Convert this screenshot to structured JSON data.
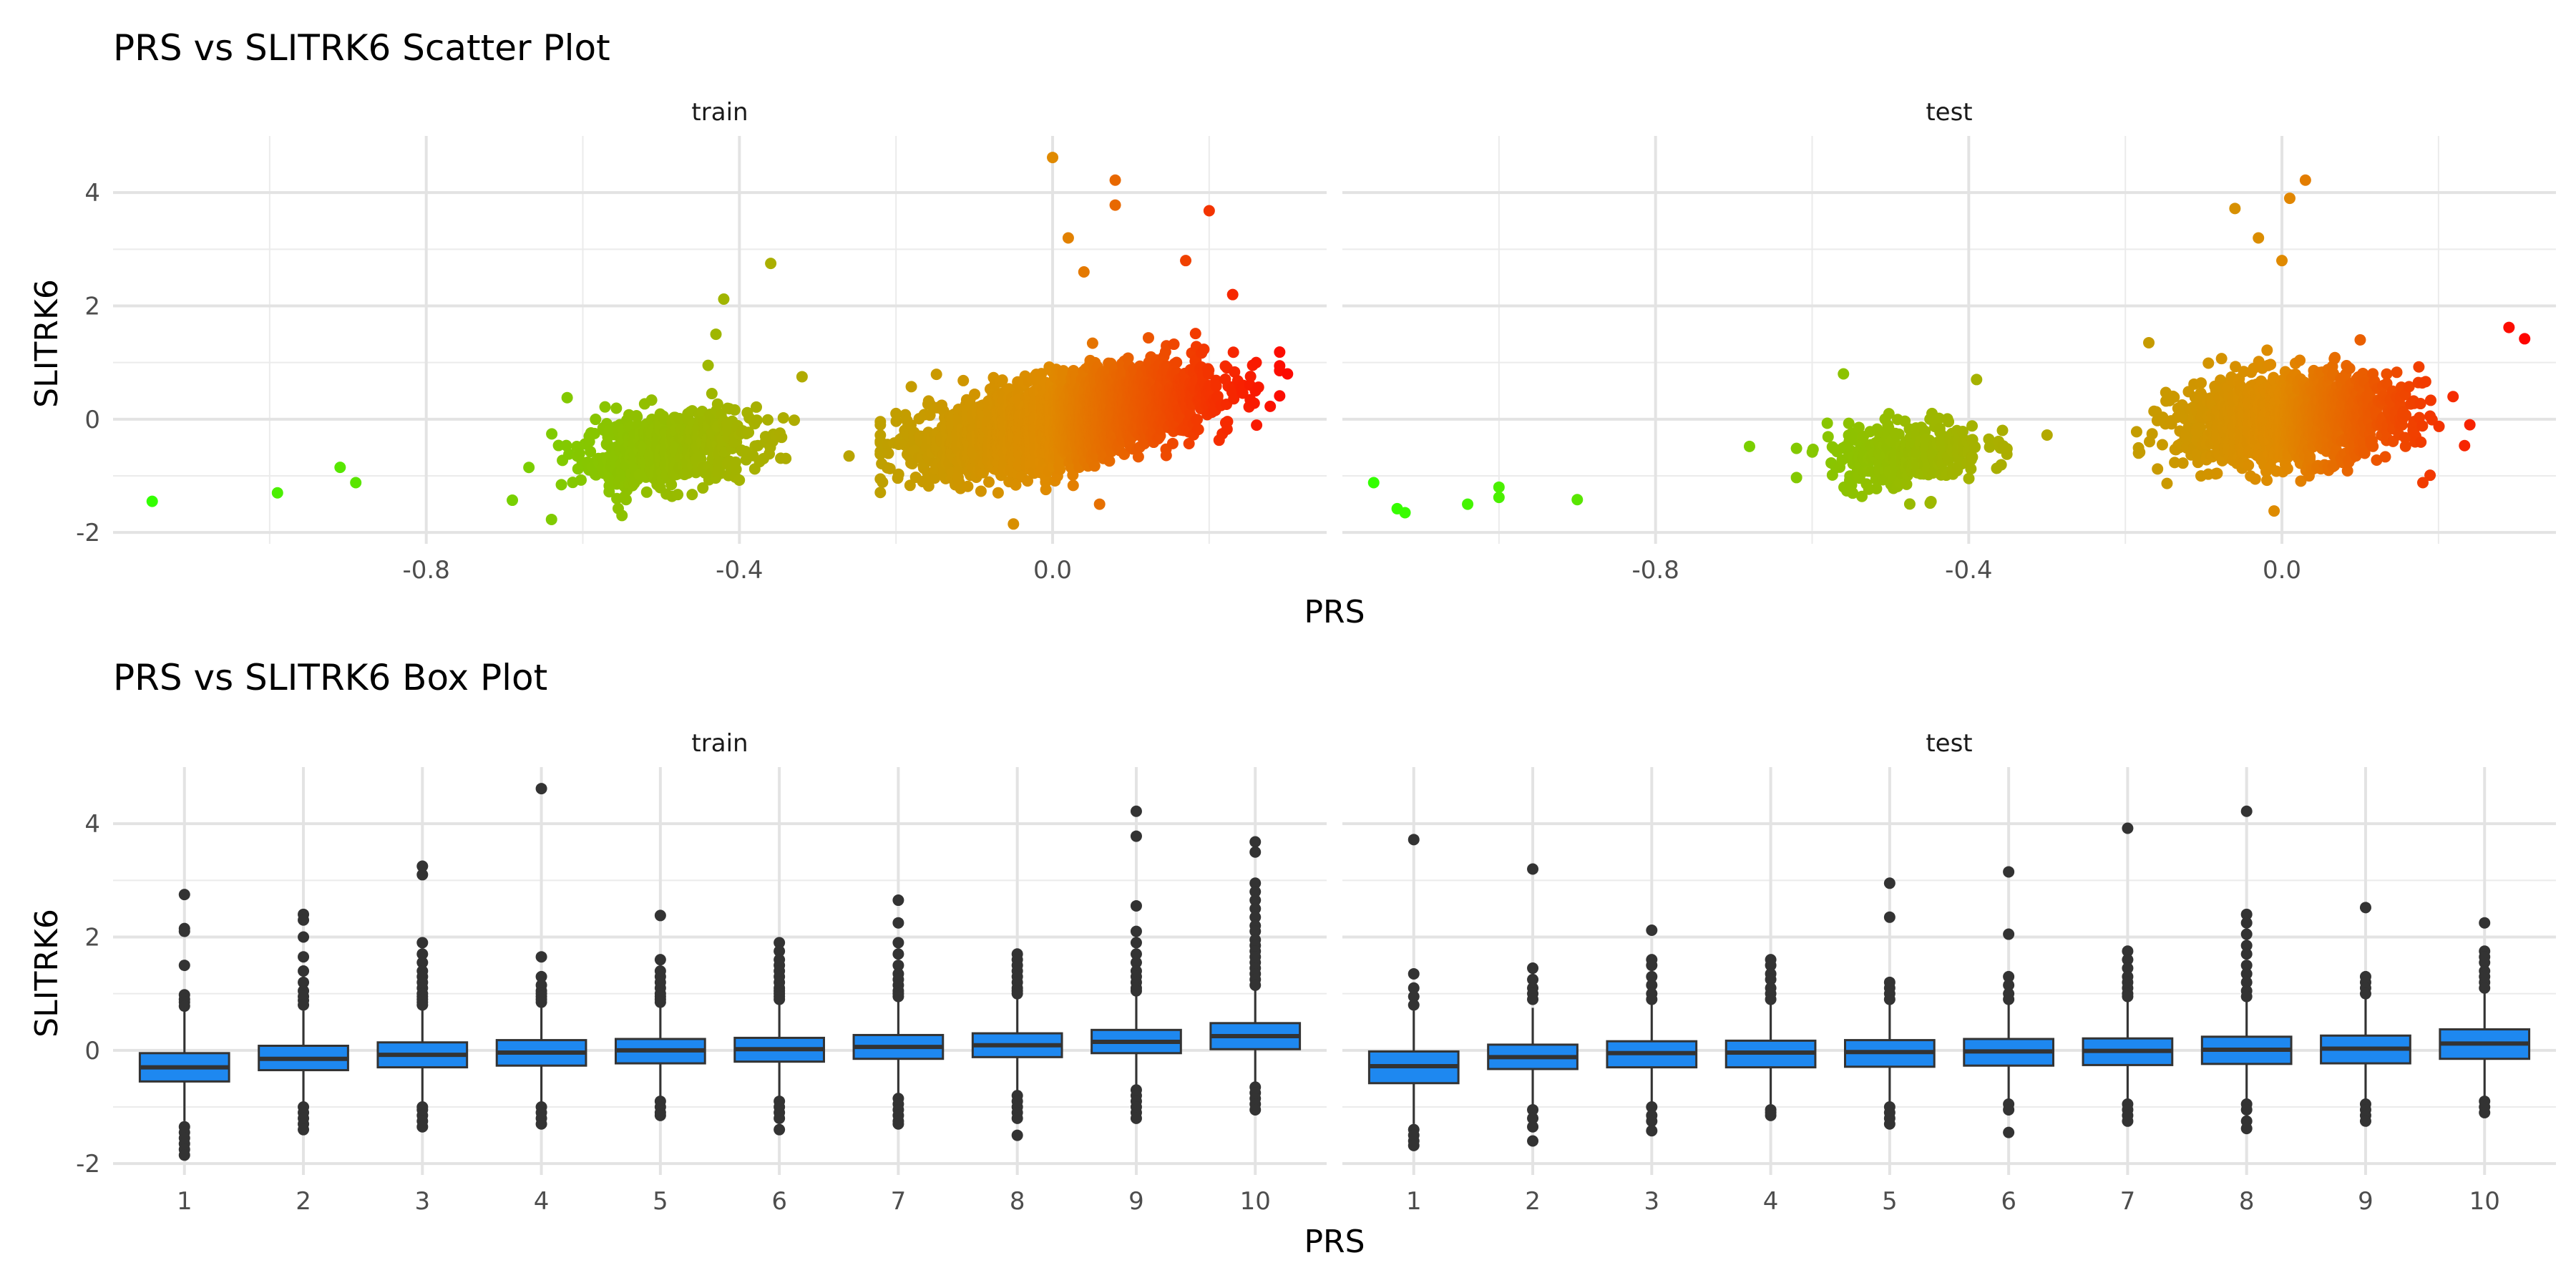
{
  "chart_data": [
    {
      "type": "scatter",
      "title": "PRS vs SLITRK6 Scatter Plot",
      "xlabel": "PRS",
      "ylabel": "SLITRK6",
      "xlim": [
        -1.2,
        0.35
      ],
      "ylim": [
        -2.2,
        5.0
      ],
      "x_ticks": [
        "-0.8",
        "-0.4",
        "0.0"
      ],
      "x_tick_values": [
        -0.8,
        -0.4,
        0.0
      ],
      "y_ticks": [
        "-2",
        "0",
        "2",
        "4"
      ],
      "y_tick_values": [
        -2,
        0,
        2,
        4
      ],
      "grid": true,
      "color_scale": {
        "low": "#33ff00",
        "mid": "#e08a00",
        "high": "#ff0000",
        "domain": [
          -1.15,
          0.0,
          0.32
        ]
      },
      "panels": [
        {
          "name": "train",
          "outliers": [
            {
              "x": -1.15,
              "y": -1.45
            },
            {
              "x": -0.99,
              "y": -1.3
            },
            {
              "x": -0.91,
              "y": -0.85
            },
            {
              "x": -0.89,
              "y": -1.12
            },
            {
              "x": -0.69,
              "y": -1.43
            },
            {
              "x": -0.36,
              "y": 2.75
            },
            {
              "x": -0.42,
              "y": 2.12
            },
            {
              "x": -0.43,
              "y": 1.5
            },
            {
              "x": -0.44,
              "y": 0.95
            },
            {
              "x": -0.32,
              "y": 0.75
            },
            {
              "x": -0.64,
              "y": -1.77
            },
            {
              "x": -0.55,
              "y": -1.7
            },
            {
              "x": -0.62,
              "y": 0.38
            },
            {
              "x": 0.0,
              "y": 4.62
            },
            {
              "x": 0.08,
              "y": 4.22
            },
            {
              "x": 0.08,
              "y": 3.78
            },
            {
              "x": 0.2,
              "y": 3.68
            },
            {
              "x": 0.02,
              "y": 3.2
            },
            {
              "x": 0.04,
              "y": 2.6
            },
            {
              "x": 0.17,
              "y": 2.8
            },
            {
              "x": 0.23,
              "y": 2.2
            },
            {
              "x": 0.3,
              "y": 0.8
            },
            {
              "x": 0.26,
              "y": 1.0
            },
            {
              "x": -0.05,
              "y": -1.85
            },
            {
              "x": 0.06,
              "y": -1.5
            },
            {
              "x": -0.22,
              "y": -0.1
            },
            {
              "x": -0.26,
              "y": -0.65
            },
            {
              "x": -0.2,
              "y": 0.1
            }
          ],
          "clusters": [
            {
              "cx": -0.49,
              "cy": -0.55,
              "sx": 0.055,
              "sy": 0.32,
              "rho": 0.25,
              "n": 650,
              "xmin": -0.67,
              "xmax": -0.31
            },
            {
              "cx": 0.02,
              "cy": 0.0,
              "sx": 0.085,
              "sy": 0.42,
              "rho": 0.55,
              "n": 3500,
              "xmin": -0.22,
              "xmax": 0.29
            }
          ]
        },
        {
          "name": "test",
          "outliers": [
            {
              "x": -1.16,
              "y": -1.12
            },
            {
              "x": -1.13,
              "y": -1.58
            },
            {
              "x": -1.12,
              "y": -1.65
            },
            {
              "x": -1.04,
              "y": -1.5
            },
            {
              "x": -1.0,
              "y": -1.2
            },
            {
              "x": -1.0,
              "y": -1.38
            },
            {
              "x": -0.9,
              "y": -1.42
            },
            {
              "x": -0.68,
              "y": -0.48
            },
            {
              "x": -0.56,
              "y": 0.8
            },
            {
              "x": -0.39,
              "y": 0.7
            },
            {
              "x": -0.3,
              "y": -0.28
            },
            {
              "x": 0.03,
              "y": 4.22
            },
            {
              "x": 0.01,
              "y": 3.9
            },
            {
              "x": -0.06,
              "y": 3.72
            },
            {
              "x": -0.03,
              "y": 3.2
            },
            {
              "x": 0.0,
              "y": 2.8
            },
            {
              "x": 0.29,
              "y": 1.62
            },
            {
              "x": 0.31,
              "y": 1.42
            },
            {
              "x": 0.18,
              "y": -1.12
            },
            {
              "x": -0.01,
              "y": -1.62
            },
            {
              "x": -0.17,
              "y": 1.35
            },
            {
              "x": 0.1,
              "y": 1.4
            }
          ],
          "clusters": [
            {
              "cx": -0.48,
              "cy": -0.6,
              "sx": 0.05,
              "sy": 0.3,
              "rho": 0.2,
              "n": 330,
              "xmin": -0.62,
              "xmax": -0.35
            },
            {
              "cx": 0.01,
              "cy": 0.0,
              "sx": 0.07,
              "sy": 0.38,
              "rho": 0.15,
              "n": 1500,
              "xmin": -0.2,
              "xmax": 0.24
            }
          ]
        }
      ]
    },
    {
      "type": "box",
      "title": "PRS vs SLITRK6 Box Plot",
      "xlabel": "PRS",
      "ylabel": "SLITRK6",
      "categories": [
        "1",
        "2",
        "3",
        "4",
        "5",
        "6",
        "7",
        "8",
        "9",
        "10"
      ],
      "ylim": [
        -2.2,
        5.0
      ],
      "y_ticks": [
        "-2",
        "0",
        "2",
        "4"
      ],
      "y_tick_values": [
        -2,
        0,
        2,
        4
      ],
      "grid": true,
      "box_color": "#1e88f0",
      "panels": [
        {
          "name": "train",
          "boxes": [
            {
              "q1": -0.55,
              "median": -0.3,
              "q3": -0.05,
              "lower": -1.25,
              "upper": 0.7,
              "outliers": [
                2.75,
                2.15,
                2.1,
                1.5,
                0.98,
                0.9,
                0.85,
                0.78,
                -1.35,
                -1.45,
                -1.55,
                -1.65,
                -1.75,
                -1.85
              ]
            },
            {
              "q1": -0.35,
              "median": -0.15,
              "q3": 0.08,
              "lower": -0.95,
              "upper": 0.7,
              "outliers": [
                2.4,
                2.3,
                2.0,
                1.65,
                1.4,
                1.2,
                1.05,
                0.95,
                0.88,
                0.8,
                -1.0,
                -1.1,
                -1.2,
                -1.3,
                -1.4
              ]
            },
            {
              "q1": -0.3,
              "median": -0.08,
              "q3": 0.14,
              "lower": -0.95,
              "upper": 0.75,
              "outliers": [
                3.25,
                3.1,
                1.9,
                1.7,
                1.55,
                1.4,
                1.3,
                1.2,
                1.1,
                1.0,
                0.95,
                0.9,
                0.85,
                0.8,
                -1.0,
                -1.05,
                -1.15,
                -1.25,
                -1.35
              ]
            },
            {
              "q1": -0.27,
              "median": -0.04,
              "q3": 0.18,
              "lower": -0.95,
              "upper": 0.8,
              "outliers": [
                4.62,
                1.65,
                1.3,
                1.15,
                1.05,
                1.0,
                0.95,
                0.9,
                0.85,
                -1.0,
                -1.1,
                -1.2,
                -1.3
              ]
            },
            {
              "q1": -0.23,
              "median": 0.0,
              "q3": 0.2,
              "lower": -0.85,
              "upper": 0.8,
              "outliers": [
                2.38,
                1.6,
                1.4,
                1.3,
                1.2,
                1.1,
                1.0,
                0.95,
                0.9,
                0.85,
                -0.9,
                -1.0,
                -1.1,
                -1.15
              ]
            },
            {
              "q1": -0.2,
              "median": 0.02,
              "q3": 0.22,
              "lower": -0.85,
              "upper": 0.85,
              "outliers": [
                1.9,
                1.75,
                1.6,
                1.5,
                1.4,
                1.3,
                1.2,
                1.1,
                1.05,
                1.0,
                0.95,
                0.9,
                -0.9,
                -1.0,
                -1.1,
                -1.2,
                -1.4
              ]
            },
            {
              "q1": -0.15,
              "median": 0.06,
              "q3": 0.27,
              "lower": -0.8,
              "upper": 0.9,
              "outliers": [
                2.65,
                2.25,
                1.9,
                1.7,
                1.5,
                1.35,
                1.25,
                1.15,
                1.05,
                1.0,
                0.95,
                -0.85,
                -0.95,
                -1.05,
                -1.15,
                -1.25,
                -1.3
              ]
            },
            {
              "q1": -0.12,
              "median": 0.09,
              "q3": 0.3,
              "lower": -0.75,
              "upper": 0.95,
              "outliers": [
                1.7,
                1.6,
                1.5,
                1.4,
                1.3,
                1.2,
                1.1,
                1.05,
                1.0,
                -0.8,
                -0.9,
                -1.0,
                -1.1,
                -1.2,
                -1.5
              ]
            },
            {
              "q1": -0.05,
              "median": 0.15,
              "q3": 0.36,
              "lower": -0.65,
              "upper": 1.0,
              "outliers": [
                4.22,
                3.78,
                2.55,
                2.1,
                1.9,
                1.7,
                1.55,
                1.4,
                1.3,
                1.2,
                1.1,
                1.05,
                -0.7,
                -0.8,
                -0.9,
                -1.0,
                -1.1,
                -1.2
              ]
            },
            {
              "q1": 0.02,
              "median": 0.25,
              "q3": 0.48,
              "lower": -0.6,
              "upper": 1.1,
              "outliers": [
                3.68,
                3.5,
                2.95,
                2.8,
                2.65,
                2.5,
                2.35,
                2.2,
                2.1,
                1.95,
                1.85,
                1.75,
                1.65,
                1.55,
                1.45,
                1.35,
                1.25,
                1.15,
                -0.65,
                -0.75,
                -0.85,
                -0.95,
                -1.05
              ]
            }
          ]
        },
        {
          "name": "test",
          "boxes": [
            {
              "q1": -0.58,
              "median": -0.28,
              "q3": -0.02,
              "lower": -1.3,
              "upper": 0.7,
              "outliers": [
                3.72,
                1.35,
                1.1,
                0.95,
                0.8,
                -1.4,
                -1.5,
                -1.6,
                -1.68
              ]
            },
            {
              "q1": -0.33,
              "median": -0.12,
              "q3": 0.1,
              "lower": -1.0,
              "upper": 0.75,
              "outliers": [
                3.2,
                1.45,
                1.25,
                1.1,
                1.0,
                0.9,
                -1.05,
                -1.2,
                -1.35,
                -1.6
              ]
            },
            {
              "q1": -0.3,
              "median": -0.05,
              "q3": 0.16,
              "lower": -0.95,
              "upper": 0.8,
              "outliers": [
                2.12,
                1.6,
                1.5,
                1.3,
                1.15,
                1.0,
                0.9,
                -1.0,
                -1.15,
                -1.25,
                -1.42
              ]
            },
            {
              "q1": -0.3,
              "median": -0.04,
              "q3": 0.17,
              "lower": -0.95,
              "upper": 0.85,
              "outliers": [
                1.6,
                1.5,
                1.35,
                1.25,
                1.1,
                1.0,
                0.9,
                -1.05,
                -1.1,
                -1.15
              ]
            },
            {
              "q1": -0.29,
              "median": -0.03,
              "q3": 0.18,
              "lower": -0.95,
              "upper": 0.85,
              "outliers": [
                2.95,
                2.35,
                1.2,
                1.1,
                1.0,
                0.9,
                -1.0,
                -1.1,
                -1.2,
                -1.3
              ]
            },
            {
              "q1": -0.27,
              "median": -0.02,
              "q3": 0.2,
              "lower": -0.9,
              "upper": 0.85,
              "outliers": [
                3.15,
                2.05,
                1.3,
                1.15,
                1.0,
                0.9,
                -0.95,
                -1.05,
                -1.45
              ]
            },
            {
              "q1": -0.26,
              "median": -0.01,
              "q3": 0.21,
              "lower": -0.9,
              "upper": 0.9,
              "outliers": [
                3.92,
                1.75,
                1.6,
                1.45,
                1.3,
                1.2,
                1.1,
                1.0,
                0.95,
                -0.95,
                -1.05,
                -1.15,
                -1.25
              ]
            },
            {
              "q1": -0.24,
              "median": 0.01,
              "q3": 0.24,
              "lower": -0.9,
              "upper": 0.9,
              "outliers": [
                4.22,
                2.4,
                2.25,
                2.05,
                1.85,
                1.7,
                1.5,
                1.35,
                1.2,
                1.05,
                0.95,
                -0.95,
                -1.05,
                -1.25,
                -1.38
              ]
            },
            {
              "q1": -0.23,
              "median": 0.03,
              "q3": 0.26,
              "lower": -0.9,
              "upper": 0.95,
              "outliers": [
                2.52,
                1.3,
                1.2,
                1.1,
                1.0,
                -0.95,
                -1.05,
                -1.15,
                -1.25
              ]
            },
            {
              "q1": -0.15,
              "median": 0.12,
              "q3": 0.37,
              "lower": -0.85,
              "upper": 1.05,
              "outliers": [
                2.25,
                1.75,
                1.65,
                1.55,
                1.4,
                1.3,
                1.2,
                1.1,
                -0.9,
                -1.0,
                -1.1
              ]
            }
          ]
        }
      ]
    }
  ]
}
